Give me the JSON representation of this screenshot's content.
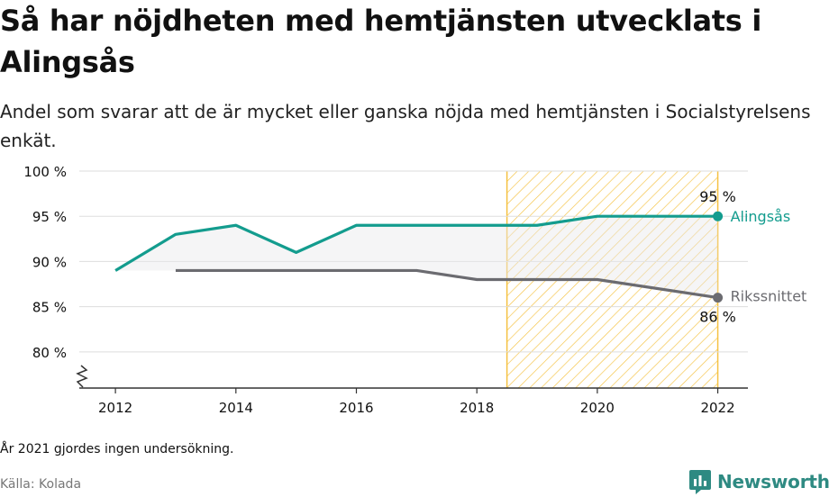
{
  "header": {
    "title": "Så har nöjdheten med hemtjänsten utvecklats i Alingsås",
    "subtitle": "Andel som svarar att de är mycket eller ganska nöjda med hemtjänsten i Socialstyrelsens enkät."
  },
  "footer": {
    "note": "År 2021 gjordes ingen undersökning.",
    "source": "Källa: Kolada",
    "brand": "Newsworthy"
  },
  "colors": {
    "alingsas": "#139c8e",
    "riket": "#6b6b70",
    "highlight": "#f5c242",
    "grid": "#dddddd",
    "text": "#111111",
    "brand": "#2e8a82"
  },
  "chart_data": {
    "type": "line",
    "x": [
      2012,
      2013,
      2014,
      2015,
      2016,
      2017,
      2018,
      2019,
      2020,
      2022
    ],
    "series": [
      {
        "name": "Alingsås",
        "values": [
          89,
          93,
          94,
          91,
          94,
          94,
          94,
          94,
          95,
          95
        ]
      },
      {
        "name": "Rikssnittet",
        "values": [
          null,
          89,
          89,
          89,
          89,
          89,
          88,
          88,
          88,
          86
        ]
      }
    ],
    "end_labels": [
      "95 %",
      "86 %"
    ],
    "xticks": [
      2012,
      2014,
      2016,
      2018,
      2020,
      2022
    ],
    "xtick_labels": [
      "2012",
      "2014",
      "2016",
      "2018",
      "2020",
      "2022"
    ],
    "yticks": [
      80,
      85,
      90,
      95,
      100
    ],
    "ytick_labels": [
      "80 %",
      "85 %",
      "90 %",
      "95 %",
      "100 %"
    ],
    "xlim": [
      2011.4,
      2022.5
    ],
    "ylim": [
      76,
      100
    ],
    "highlight_range": [
      2018.5,
      2022
    ],
    "axis_break": true,
    "grid": true
  }
}
